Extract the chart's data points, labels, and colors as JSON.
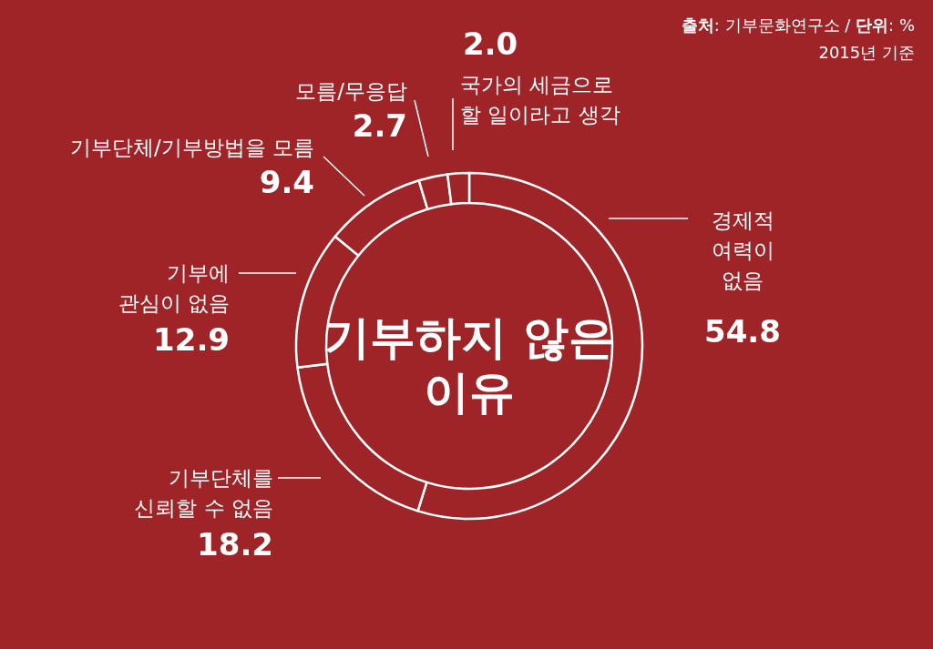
{
  "chart_data": {
    "type": "donut",
    "title": "기부하지 않은 이유",
    "categories": [
      "경제적 여력이 없음",
      "기부단체를 신뢰할 수 없음",
      "기부에 관심이 없음",
      "기부단체/기부방법을 모름",
      "모름/무응답",
      "국가의 세금으로 할 일이라고 생각"
    ],
    "values": [
      54.8,
      18.2,
      12.9,
      9.4,
      2.7,
      2.0
    ],
    "colors": [
      "#9e2428",
      "#9e2428",
      "#9e2428",
      "#9e2428",
      "#9e2428",
      "#9e2428"
    ],
    "value_labels": [
      "54.8",
      "18.2",
      "12.9",
      "9.4",
      "2.7",
      "2.0"
    ],
    "annotations": [
      "**출처**: 기부문화연구소 / **단위**: %",
      "2015년 기준"
    ]
  }
}
